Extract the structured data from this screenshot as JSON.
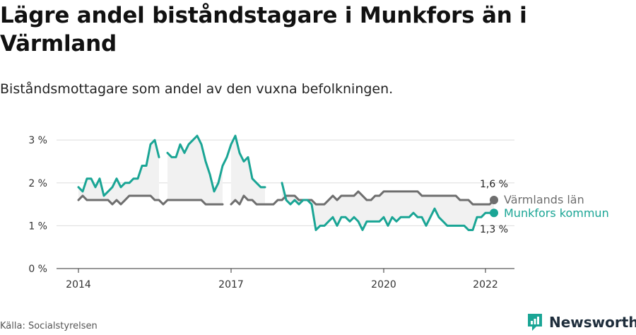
{
  "title": "Lägre andel biståndstagare i Munkfors än i Värmland",
  "subtitle": "Biståndsmottagare som andel av den vuxna befolkningen.",
  "source": "Källa: Socialstyrelsen",
  "brand": {
    "name": "Newsworthy",
    "icon": "newsworthy-logo-icon"
  },
  "colors": {
    "county": "#6e6e6e",
    "municipality": "#1aa595",
    "band": "#f1f1f1",
    "grid": "#dddddd"
  },
  "chart_data": {
    "type": "line",
    "title": "Lägre andel biståndstagare i Munkfors än i Värmland",
    "xlabel": "",
    "ylabel": "",
    "x_ticks": [
      "2014",
      "2017",
      "2020",
      "2022"
    ],
    "y_ticks": [
      "0 %",
      "1 %",
      "2 %",
      "3 %"
    ],
    "ylim": [
      0,
      3.3
    ],
    "x_range": [
      "2014-01",
      "2022-03"
    ],
    "grid": true,
    "end_labels": {
      "county_value": "1,6 %",
      "municipality_value": "1,3 %"
    },
    "x": [
      "2014-01",
      "2014-02",
      "2014-03",
      "2014-04",
      "2014-05",
      "2014-06",
      "2014-07",
      "2014-08",
      "2014-09",
      "2014-10",
      "2014-11",
      "2014-12",
      "2015-01",
      "2015-02",
      "2015-03",
      "2015-04",
      "2015-05",
      "2015-06",
      "2015-07",
      "2015-08",
      "2015-09",
      "2015-10",
      "2015-11",
      "2015-12",
      "2016-01",
      "2016-02",
      "2016-03",
      "2016-04",
      "2016-05",
      "2016-06",
      "2016-07",
      "2016-08",
      "2016-09",
      "2016-10",
      "2016-11",
      "2016-12",
      "2017-01",
      "2017-02",
      "2017-03",
      "2017-04",
      "2017-05",
      "2017-06",
      "2017-07",
      "2017-08",
      "2017-09",
      "2017-10",
      "2017-11",
      "2017-12",
      "2018-01",
      "2018-02",
      "2018-03",
      "2018-04",
      "2018-05",
      "2018-06",
      "2018-07",
      "2018-08",
      "2018-09",
      "2018-10",
      "2018-11",
      "2018-12",
      "2019-01",
      "2019-02",
      "2019-03",
      "2019-04",
      "2019-05",
      "2019-06",
      "2019-07",
      "2019-08",
      "2019-09",
      "2019-10",
      "2019-11",
      "2019-12",
      "2020-01",
      "2020-02",
      "2020-03",
      "2020-04",
      "2020-05",
      "2020-06",
      "2020-07",
      "2020-08",
      "2020-09",
      "2020-10",
      "2020-11",
      "2020-12",
      "2021-01",
      "2021-02",
      "2021-03",
      "2021-04",
      "2021-05",
      "2021-06",
      "2021-07",
      "2021-08",
      "2021-09",
      "2021-10",
      "2021-11",
      "2021-12",
      "2022-01",
      "2022-02",
      "2022-03"
    ],
    "series": [
      {
        "name": "Värmlands län",
        "color": "#6e6e6e",
        "values": [
          1.6,
          1.7,
          1.6,
          1.6,
          1.6,
          1.6,
          1.6,
          1.6,
          1.5,
          1.6,
          1.5,
          1.6,
          1.7,
          1.7,
          1.7,
          1.7,
          1.7,
          1.7,
          1.6,
          1.6,
          1.5,
          1.6,
          1.6,
          1.6,
          1.6,
          1.6,
          1.6,
          1.6,
          1.6,
          1.6,
          1.5,
          1.5,
          1.5,
          1.5,
          1.5,
          null,
          1.5,
          1.6,
          1.5,
          1.7,
          1.6,
          1.6,
          1.5,
          1.5,
          1.5,
          1.5,
          1.5,
          1.6,
          1.6,
          1.7,
          1.7,
          1.7,
          1.6,
          1.6,
          1.6,
          1.6,
          1.5,
          1.5,
          1.5,
          1.6,
          1.7,
          1.6,
          1.7,
          1.7,
          1.7,
          1.7,
          1.8,
          1.7,
          1.6,
          1.6,
          1.7,
          1.7,
          1.8,
          1.8,
          1.8,
          1.8,
          1.8,
          1.8,
          1.8,
          1.8,
          1.8,
          1.7,
          1.7,
          1.7,
          1.7,
          1.7,
          1.7,
          1.7,
          1.7,
          1.7,
          1.6,
          1.6,
          1.6,
          1.5,
          1.5,
          1.5,
          1.5,
          1.5,
          1.6
        ]
      },
      {
        "name": "Munkfors kommun",
        "color": "#1aa595",
        "values": [
          1.9,
          1.8,
          2.1,
          2.1,
          1.9,
          2.1,
          1.7,
          1.8,
          1.9,
          2.1,
          1.9,
          2.0,
          2.0,
          2.1,
          2.1,
          2.4,
          2.4,
          2.9,
          3.0,
          2.6,
          null,
          2.7,
          2.6,
          2.6,
          2.9,
          2.7,
          2.9,
          3.0,
          3.1,
          2.9,
          2.5,
          2.2,
          1.8,
          2.0,
          2.4,
          2.6,
          2.9,
          3.1,
          2.7,
          2.5,
          2.6,
          2.1,
          2.0,
          1.9,
          1.9,
          null,
          null,
          null,
          2.0,
          1.6,
          1.5,
          1.6,
          1.5,
          1.6,
          1.6,
          1.5,
          0.9,
          1.0,
          1.0,
          1.1,
          1.2,
          1.0,
          1.2,
          1.2,
          1.1,
          1.2,
          1.1,
          0.9,
          1.1,
          1.1,
          1.1,
          1.1,
          1.2,
          1.0,
          1.2,
          1.1,
          1.2,
          1.2,
          1.2,
          1.3,
          1.2,
          1.2,
          1.0,
          1.2,
          1.4,
          1.2,
          1.1,
          1.0,
          1.0,
          1.0,
          1.0,
          1.0,
          0.9,
          0.9,
          1.2,
          1.2,
          1.3,
          1.3,
          1.3
        ]
      }
    ]
  }
}
